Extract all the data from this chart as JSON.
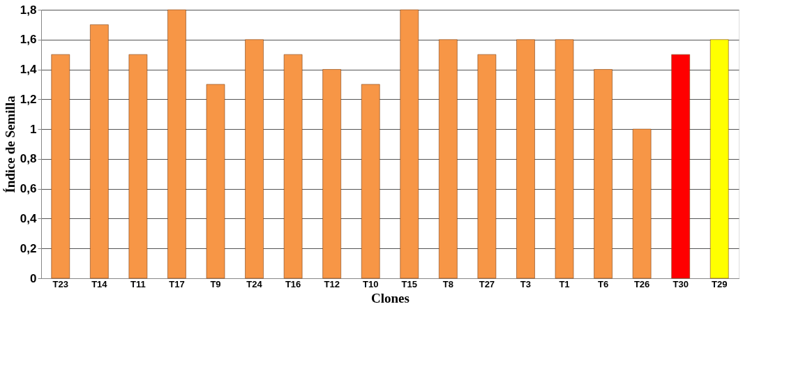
{
  "chart_data": {
    "type": "bar",
    "xlabel": "Clones",
    "ylabel": "Índice de Semilla",
    "categories": [
      "T23",
      "T14",
      "T11",
      "T17",
      "T9",
      "T24",
      "T16",
      "T12",
      "T10",
      "T15",
      "T8",
      "T27",
      "T3",
      "T1",
      "T6",
      "T26",
      "T30",
      "T29"
    ],
    "values": [
      1.5,
      1.7,
      1.5,
      1.8,
      1.3,
      1.6,
      1.5,
      1.4,
      1.3,
      1.8,
      1.6,
      1.5,
      1.6,
      1.6,
      1.4,
      1.0,
      1.5,
      1.6
    ],
    "colors": [
      "#f79646",
      "#f79646",
      "#f79646",
      "#f79646",
      "#f79646",
      "#f79646",
      "#f79646",
      "#f79646",
      "#f79646",
      "#f79646",
      "#f79646",
      "#f79646",
      "#f79646",
      "#f79646",
      "#f79646",
      "#f79646",
      "#ff0000",
      "#ffff00"
    ],
    "ylim": [
      0,
      1.8
    ],
    "yticks": [
      0,
      {
        "value": 0.2,
        "label": "0,2"
      },
      {
        "value": 0.4,
        "label": "0,4"
      },
      {
        "value": 0.6,
        "label": "0,6"
      },
      {
        "value": 0.8,
        "label": "0,8"
      },
      1,
      {
        "value": 1.2,
        "label": "1,2"
      },
      {
        "value": 1.4,
        "label": "1,4"
      },
      {
        "value": 1.6,
        "label": "1,6"
      },
      {
        "value": 1.8,
        "label": "1,8"
      }
    ],
    "grid": "y"
  }
}
